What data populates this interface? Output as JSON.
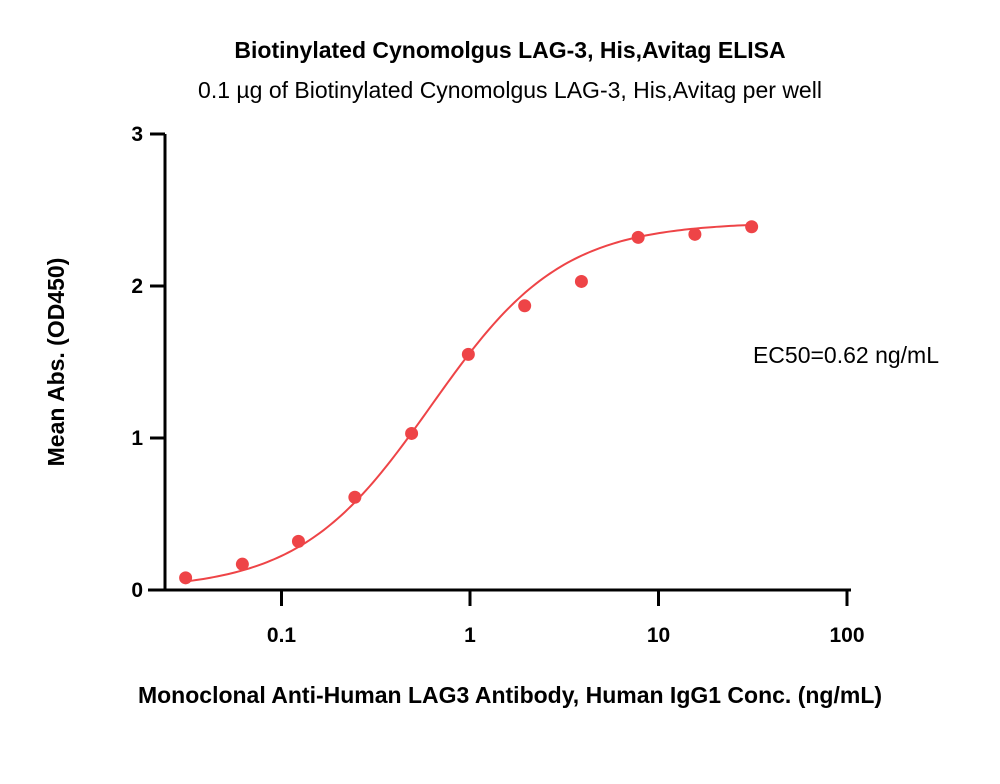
{
  "chart_data": {
    "type": "scatter",
    "title": "Biotinylated Cynomolgus LAG-3, His,Avitag ELISA",
    "subtitle": "0.1 µg of Biotinylated Cynomolgus LAG-3, His,Avitag per well",
    "xlabel": "Monoclonal Anti-Human LAG3 Antibody, Human IgG1 Conc. (ng/mL)",
    "ylabel": "Mean Abs. (OD450)",
    "x_scale": "log",
    "xlim": [
      0.03,
      100
    ],
    "ylim": [
      0,
      3
    ],
    "x_ticks": [
      0.1,
      1,
      10,
      100
    ],
    "x_tick_labels": [
      "0.1",
      "1",
      "10",
      "100"
    ],
    "y_ticks": [
      0,
      1,
      2,
      3
    ],
    "y_tick_labels": [
      "0",
      "1",
      "2",
      "3"
    ],
    "grid": false,
    "series": [
      {
        "color": "#ee4447",
        "x": [
          0.031,
          0.062,
          0.123,
          0.245,
          0.49,
          0.98,
          1.95,
          3.9,
          7.8,
          15.6,
          31.2
        ],
        "y": [
          0.08,
          0.17,
          0.32,
          0.61,
          1.03,
          1.55,
          1.87,
          2.03,
          2.32,
          2.34,
          2.39
        ]
      }
    ],
    "fit_curve": {
      "model": "4PL",
      "bottom": 0.0,
      "top": 2.42,
      "ec50": 0.62,
      "hill": 1.25,
      "color": "#ee4447"
    },
    "annotations": [
      "EC50=0.62 ng/mL"
    ]
  }
}
